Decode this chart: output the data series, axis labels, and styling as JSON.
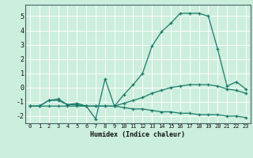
{
  "title": "",
  "xlabel": "Humidex (Indice chaleur)",
  "background_color": "#cceedd",
  "grid_color": "#ffffff",
  "line_color": "#1a7a6a",
  "x": [
    0,
    1,
    2,
    3,
    4,
    5,
    6,
    7,
    8,
    9,
    10,
    11,
    12,
    13,
    14,
    15,
    16,
    17,
    18,
    19,
    20,
    21,
    22,
    23
  ],
  "line1": [
    -1.3,
    -1.3,
    -0.9,
    -0.8,
    -1.2,
    -1.1,
    -1.3,
    -2.2,
    0.6,
    -1.3,
    -0.5,
    0.2,
    1.0,
    2.9,
    3.9,
    4.5,
    5.2,
    5.2,
    5.2,
    5.0,
    2.7,
    0.1,
    0.4,
    -0.1
  ],
  "line2": [
    -1.3,
    -1.3,
    -0.9,
    -0.9,
    -1.2,
    -1.2,
    -1.3,
    -1.3,
    -1.3,
    -1.3,
    -1.1,
    -0.9,
    -0.7,
    -0.4,
    -0.2,
    0.0,
    0.1,
    0.2,
    0.2,
    0.2,
    0.1,
    -0.1,
    -0.2,
    -0.4
  ],
  "line3": [
    -1.3,
    -1.3,
    -1.3,
    -1.3,
    -1.3,
    -1.3,
    -1.3,
    -1.3,
    -1.3,
    -1.3,
    -1.4,
    -1.5,
    -1.5,
    -1.6,
    -1.7,
    -1.7,
    -1.8,
    -1.8,
    -1.9,
    -1.9,
    -1.9,
    -2.0,
    -2.0,
    -2.1
  ],
  "ylim": [
    -2.5,
    5.8
  ],
  "xlim": [
    -0.5,
    23.5
  ],
  "yticks": [
    -2,
    -1,
    0,
    1,
    2,
    3,
    4,
    5
  ],
  "xticks": [
    0,
    1,
    2,
    3,
    4,
    5,
    6,
    7,
    8,
    9,
    10,
    11,
    12,
    13,
    14,
    15,
    16,
    17,
    18,
    19,
    20,
    21,
    22,
    23
  ],
  "xtick_labels": [
    "0",
    "1",
    "2",
    "3",
    "4",
    "5",
    "6",
    "7",
    "8",
    "9",
    "10",
    "11",
    "12",
    "13",
    "14",
    "15",
    "16",
    "17",
    "18",
    "19",
    "20",
    "21",
    "22",
    "23"
  ]
}
